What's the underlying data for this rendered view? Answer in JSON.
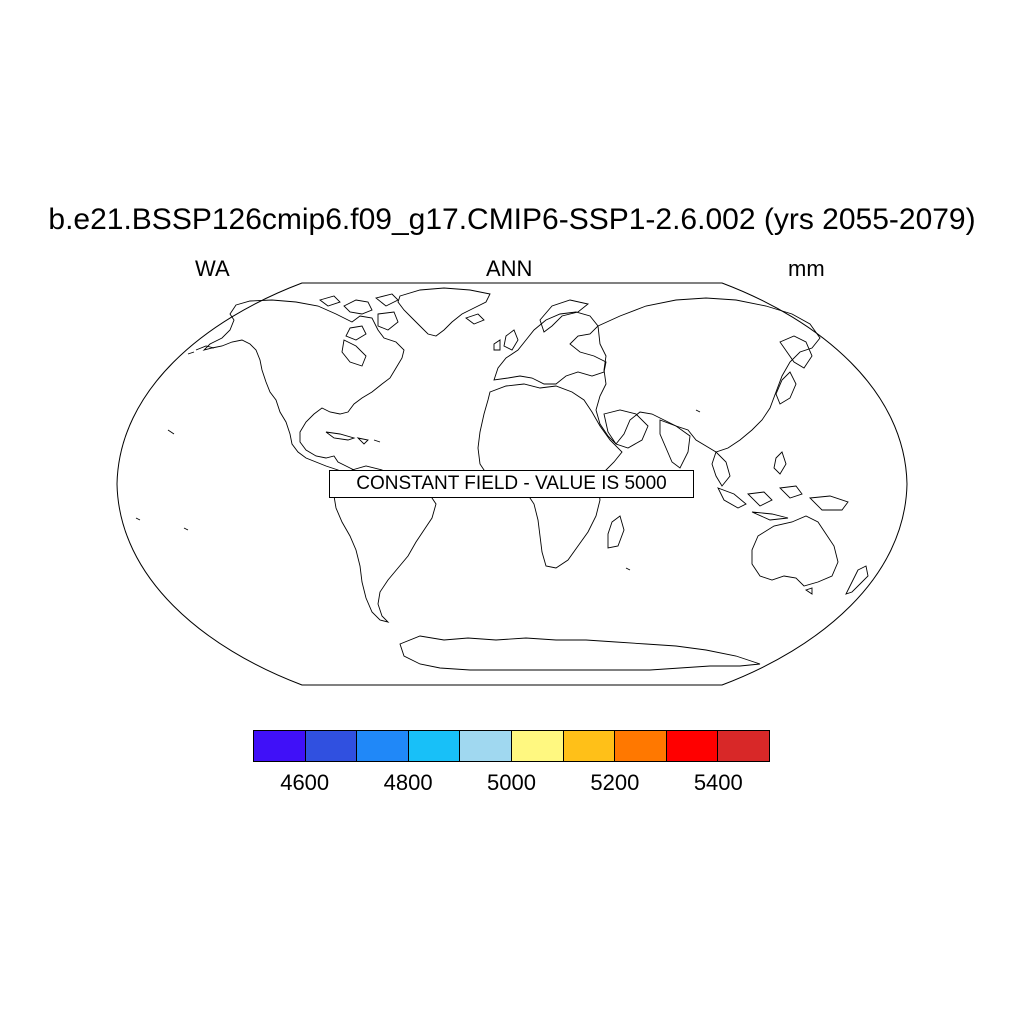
{
  "title": "b.e21.BSSP126cmip6.f09_g17.CMIP6-SSP1-2.6.002 (yrs 2055-2079)",
  "subtitle_left": "WA",
  "subtitle_center": "ANN",
  "subtitle_right": "mm",
  "annotation": "CONSTANT FIELD - VALUE IS 5000",
  "colorbar": {
    "colors": [
      "#4010f8",
      "#3050e0",
      "#2088f8",
      "#18c0f8",
      "#a0d8f0",
      "#fff880",
      "#ffc018",
      "#ff7800",
      "#ff0000",
      "#d82828"
    ],
    "tick_labels": [
      "4600",
      "4800",
      "5000",
      "5200",
      "5400"
    ]
  }
}
